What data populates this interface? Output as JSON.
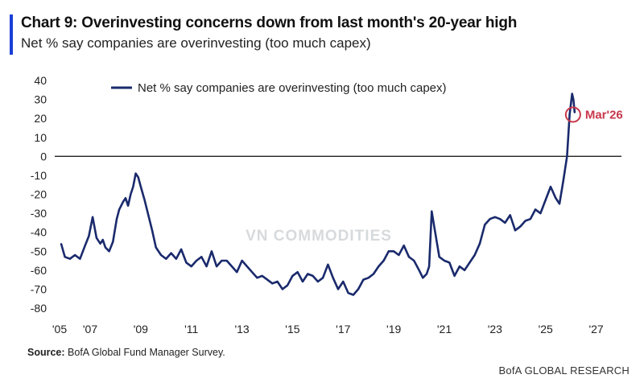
{
  "header": {
    "title": "Chart 9: Overinvesting concerns down from last month's 20-year high",
    "subtitle": "Net % say companies are overinvesting (too much capex)"
  },
  "footer": {
    "source_label": "Source:",
    "source_text": "BofA Global Fund Manager Survey.",
    "brand": "BofA GLOBAL RESEARCH"
  },
  "watermark": {
    "text": "VN COMMODITIES"
  },
  "colors": {
    "line": "#1a2a6c",
    "accent": "#c8374a",
    "title_bar": "#1a3fd6",
    "watermark": "#b8bcc0"
  },
  "chart_data": {
    "type": "line",
    "title": "Chart 9: Overinvesting concerns down from last month's 20-year high",
    "xlabel": "",
    "ylabel": "",
    "xlim": [
      2005.6,
      2028
    ],
    "ylim": [
      -80,
      40
    ],
    "xticks": [
      2005,
      2007,
      2009,
      2011,
      2013,
      2015,
      2017,
      2019,
      2021,
      2023,
      2025,
      2027
    ],
    "xtick_labels": [
      "'05",
      "'07",
      "'09",
      "'11",
      "'13",
      "'15",
      "'17",
      "'19",
      "'21",
      "'23",
      "'25",
      "'27"
    ],
    "yticks": [
      40,
      30,
      20,
      10,
      0,
      -10,
      -20,
      -30,
      -40,
      -50,
      -60,
      -70,
      -80
    ],
    "ytick_labels": [
      "40",
      "30",
      "20",
      "10",
      "0",
      "-10",
      "-20",
      "-30",
      "-40",
      "-50",
      "-60",
      "-70",
      "-80"
    ],
    "legend": "top-left",
    "series": [
      {
        "name": "Net % say companies are overinvesting (too much capex)",
        "x": [
          2005.85,
          2006.0,
          2006.2,
          2006.4,
          2006.6,
          2006.8,
          2006.95,
          2007.1,
          2007.25,
          2007.4,
          2007.5,
          2007.6,
          2007.75,
          2007.9,
          2008.05,
          2008.15,
          2008.3,
          2008.4,
          2008.5,
          2008.6,
          2008.7,
          2008.8,
          2008.9,
          2009.0,
          2009.15,
          2009.3,
          2009.45,
          2009.6,
          2009.8,
          2010.0,
          2010.2,
          2010.4,
          2010.6,
          2010.8,
          2011.0,
          2011.2,
          2011.4,
          2011.6,
          2011.8,
          2012.0,
          2012.2,
          2012.4,
          2012.6,
          2012.8,
          2013.0,
          2013.2,
          2013.4,
          2013.6,
          2013.8,
          2014.0,
          2014.2,
          2014.4,
          2014.6,
          2014.8,
          2015.0,
          2015.2,
          2015.4,
          2015.6,
          2015.8,
          2016.0,
          2016.2,
          2016.4,
          2016.6,
          2016.8,
          2017.0,
          2017.2,
          2017.4,
          2017.6,
          2017.8,
          2018.0,
          2018.2,
          2018.4,
          2018.6,
          2018.8,
          2019.0,
          2019.2,
          2019.4,
          2019.6,
          2019.8,
          2020.0,
          2020.15,
          2020.3,
          2020.4,
          2020.5,
          2020.6,
          2020.8,
          2021.0,
          2021.2,
          2021.4,
          2021.6,
          2021.8,
          2022.0,
          2022.2,
          2022.4,
          2022.6,
          2022.8,
          2023.0,
          2023.2,
          2023.4,
          2023.6,
          2023.8,
          2024.0,
          2024.2,
          2024.4,
          2024.6,
          2024.8,
          2025.0,
          2025.2,
          2025.4,
          2025.55,
          2025.7,
          2025.85,
          2025.95,
          2026.05,
          2026.1,
          2026.15
        ],
        "y": [
          -46,
          -53,
          -54,
          -52,
          -54,
          -47,
          -42,
          -32,
          -43,
          -46,
          -44,
          -48,
          -50,
          -45,
          -33,
          -28,
          -24,
          -22,
          -26,
          -20,
          -16,
          -9,
          -11,
          -16,
          -23,
          -31,
          -39,
          -48,
          -52,
          -54,
          -51,
          -54,
          -49,
          -56,
          -58,
          -55,
          -53,
          -58,
          -50,
          -58,
          -55,
          -55,
          -58,
          -61,
          -55,
          -58,
          -61,
          -64,
          -63,
          -65,
          -67,
          -66,
          -70,
          -68,
          -63,
          -61,
          -66,
          -62,
          -63,
          -66,
          -64,
          -57,
          -64,
          -70,
          -66,
          -72,
          -73,
          -70,
          -65,
          -64,
          -62,
          -58,
          -55,
          -50,
          -50,
          -52,
          -47,
          -53,
          -55,
          -60,
          -64,
          -62,
          -58,
          -29,
          -37,
          -53,
          -55,
          -56,
          -63,
          -58,
          -60,
          -56,
          -52,
          -46,
          -36,
          -33,
          -32,
          -33,
          -35,
          -31,
          -39,
          -37,
          -34,
          -33,
          -28,
          -30,
          -23,
          -16,
          -22,
          -25,
          -13,
          0,
          22,
          33,
          30,
          23
        ]
      }
    ],
    "annotations": [
      {
        "label": "Mar'26",
        "x": 2026.15,
        "y": 22
      }
    ]
  }
}
